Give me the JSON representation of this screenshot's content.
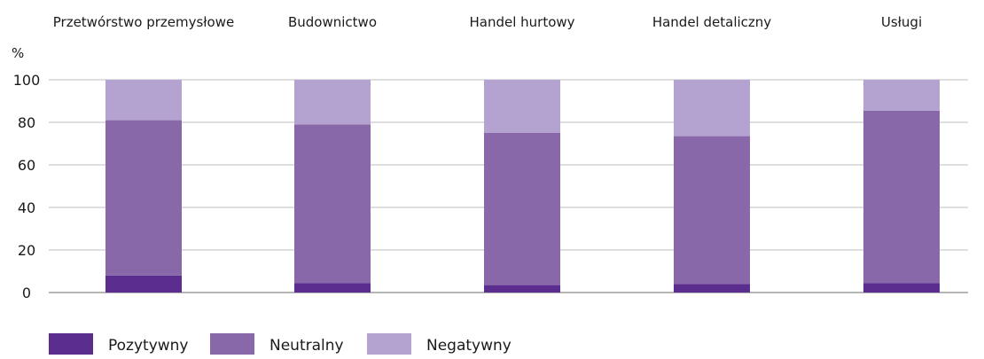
{
  "chart_data": {
    "type": "bar",
    "stacked": true,
    "unit_label": "%",
    "categories": [
      "Przetwórstwo przemysłowe",
      "Budownictwo",
      "Handel hurtowy",
      "Handel detaliczny",
      "Usługi"
    ],
    "series": [
      {
        "name": "Pozytywny",
        "color": "#5b2d8e",
        "values": [
          8,
          4.5,
          3.5,
          4,
          4.5
        ]
      },
      {
        "name": "Neutralny",
        "color": "#8968aa",
        "values": [
          73,
          74.5,
          71.5,
          69.5,
          81
        ]
      },
      {
        "name": "Negatywny",
        "color": "#b4a2d1",
        "values": [
          19,
          21,
          25,
          26.5,
          14.5
        ]
      }
    ],
    "ylim": [
      0,
      100
    ],
    "yticks": [
      0,
      20,
      40,
      60,
      80,
      100
    ],
    "grid": true,
    "legend_position": "bottom-left"
  }
}
